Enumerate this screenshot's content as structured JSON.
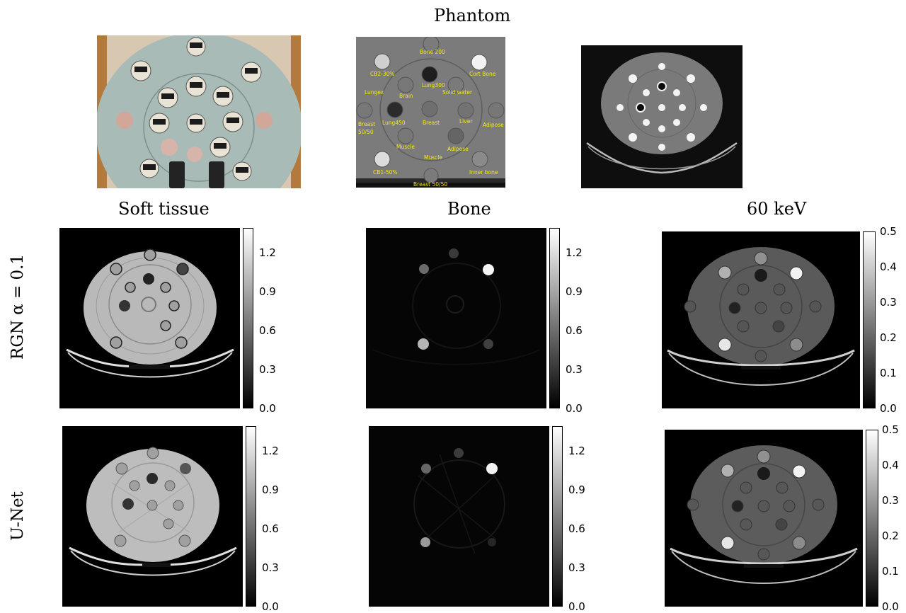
{
  "figure": {
    "top_title": "Phantom",
    "column_titles": [
      "Soft tissue",
      "Bone",
      "60 keV"
    ],
    "row_labels": [
      "RGN α = 0.1",
      "U-Net"
    ],
    "colorbar_ticks_basis": [
      "0.0",
      "0.3",
      "0.6",
      "0.9",
      "1.2"
    ],
    "colorbar_ticks_kev": [
      "0.0",
      "0.1",
      "0.2",
      "0.3",
      "0.4",
      "0.5"
    ],
    "phantom_annotations": {
      "bone200": "Bone 200",
      "cb230": "CB2-30%",
      "cortbone": "Cort Bone",
      "lung300": "Lung300",
      "lungex": "Lungex",
      "brain": "Brain",
      "solidwater": "Solid water",
      "breast5050a": "Breast",
      "breast5050a2": "50/50",
      "lung450": "Lung450",
      "breast": "Breast",
      "liver": "Liver",
      "adipose1": "Adipose",
      "muscle1": "Muscle",
      "adipose2": "Adipose",
      "muscle2": "Muscle",
      "cb150": "CB1-50%",
      "innerbone": "Inner bone",
      "breast5050b": "Breast 50/50"
    }
  }
}
